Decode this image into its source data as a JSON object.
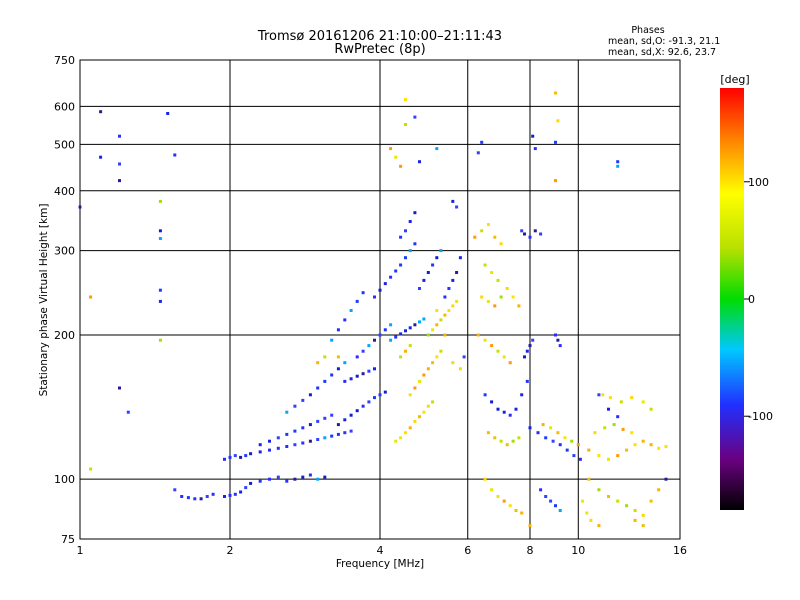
{
  "chart_data": {
    "type": "scatter",
    "title": "Tromsø 20161206 21:10:00–21:11:43",
    "subtitle": "RwPretec (8p)",
    "xlabel": "Frequency [MHz]",
    "ylabel": "Stationary phase Virtual Height [km]",
    "x_scale": "log",
    "y_scale": "log",
    "xlim": [
      1,
      16
    ],
    "ylim": [
      75,
      750
    ],
    "x_ticks": [
      1,
      2,
      4,
      6,
      8,
      10,
      16
    ],
    "y_ticks": [
      75,
      100,
      200,
      300,
      400,
      500,
      600,
      750
    ],
    "grid": true,
    "stats": {
      "heading": "Phases",
      "line_o": "mean, sd,O: -91.3, 21.1",
      "line_x": "mean, sd,X:  92.6, 23.7"
    },
    "colorbar": {
      "label": "[deg]",
      "min": -180,
      "max": 180,
      "ticks": [
        100,
        0,
        -100
      ]
    },
    "series": [
      {
        "color_mode": "o",
        "points": [
          [
            1.0,
            370
          ],
          [
            1.1,
            585
          ],
          [
            1.1,
            470
          ],
          [
            1.2,
            520
          ],
          [
            1.2,
            455
          ],
          [
            1.2,
            420
          ],
          [
            1.5,
            580
          ],
          [
            1.55,
            475
          ],
          [
            1.2,
            155
          ],
          [
            1.25,
            138
          ],
          [
            1.45,
            330
          ],
          [
            1.45,
            318
          ],
          [
            1.45,
            248
          ],
          [
            1.45,
            235
          ],
          [
            1.55,
            95
          ],
          [
            1.6,
            92
          ],
          [
            1.65,
            91.5
          ],
          [
            1.7,
            91
          ],
          [
            1.75,
            91
          ],
          [
            1.8,
            92
          ],
          [
            1.85,
            93
          ],
          [
            1.95,
            92
          ],
          [
            2.0,
            92.5
          ],
          [
            2.05,
            93
          ],
          [
            2.1,
            94
          ],
          [
            2.15,
            96
          ],
          [
            1.95,
            110
          ],
          [
            2.0,
            111
          ],
          [
            2.05,
            112
          ],
          [
            2.1,
            111
          ],
          [
            2.15,
            112
          ],
          [
            2.2,
            98
          ],
          [
            2.3,
            99
          ],
          [
            2.4,
            100
          ],
          [
            2.5,
            101
          ],
          [
            2.6,
            99
          ],
          [
            2.7,
            100
          ],
          [
            2.8,
            101
          ],
          [
            2.9,
            102
          ],
          [
            3.0,
            100
          ],
          [
            3.1,
            101
          ],
          [
            2.2,
            113
          ],
          [
            2.3,
            114
          ],
          [
            2.4,
            115
          ],
          [
            2.5,
            116
          ],
          [
            2.6,
            117
          ],
          [
            2.7,
            118
          ],
          [
            2.8,
            119
          ],
          [
            2.9,
            120
          ],
          [
            3.0,
            121
          ],
          [
            3.1,
            122
          ],
          [
            3.2,
            123
          ],
          [
            3.3,
            124
          ],
          [
            3.4,
            125
          ],
          [
            3.5,
            126
          ],
          [
            2.3,
            118
          ],
          [
            2.4,
            120
          ],
          [
            2.5,
            122
          ],
          [
            2.6,
            124
          ],
          [
            2.7,
            126
          ],
          [
            2.8,
            128
          ],
          [
            2.9,
            130
          ],
          [
            3.0,
            132
          ],
          [
            3.1,
            134
          ],
          [
            3.2,
            136
          ],
          [
            2.6,
            138
          ],
          [
            2.7,
            142
          ],
          [
            2.8,
            146
          ],
          [
            2.9,
            150
          ],
          [
            3.0,
            155
          ],
          [
            3.1,
            160
          ],
          [
            3.2,
            165
          ],
          [
            3.3,
            170
          ],
          [
            3.4,
            175
          ],
          [
            3.2,
            195
          ],
          [
            3.3,
            205
          ],
          [
            3.4,
            215
          ],
          [
            3.5,
            225
          ],
          [
            3.6,
            235
          ],
          [
            3.7,
            245
          ],
          [
            3.3,
            130
          ],
          [
            3.4,
            133
          ],
          [
            3.5,
            136
          ],
          [
            3.6,
            139
          ],
          [
            3.7,
            142
          ],
          [
            3.8,
            145
          ],
          [
            3.9,
            148
          ],
          [
            4.0,
            150
          ],
          [
            4.1,
            152
          ],
          [
            3.4,
            160
          ],
          [
            3.5,
            162
          ],
          [
            3.6,
            164
          ],
          [
            3.7,
            166
          ],
          [
            3.8,
            168
          ],
          [
            3.9,
            170
          ],
          [
            3.6,
            180
          ],
          [
            3.7,
            185
          ],
          [
            3.8,
            190
          ],
          [
            3.9,
            195
          ],
          [
            4.0,
            200
          ],
          [
            4.1,
            205
          ],
          [
            4.2,
            210
          ],
          [
            3.9,
            240
          ],
          [
            4.0,
            248
          ],
          [
            4.1,
            256
          ],
          [
            4.2,
            264
          ],
          [
            4.3,
            272
          ],
          [
            4.4,
            280
          ],
          [
            4.5,
            290
          ],
          [
            4.6,
            300
          ],
          [
            4.7,
            310
          ],
          [
            4.2,
            195
          ],
          [
            4.3,
            198
          ],
          [
            4.4,
            201
          ],
          [
            4.5,
            204
          ],
          [
            4.6,
            207
          ],
          [
            4.7,
            210
          ],
          [
            4.8,
            213
          ],
          [
            4.9,
            216
          ],
          [
            4.4,
            320
          ],
          [
            4.5,
            330
          ],
          [
            4.6,
            345
          ],
          [
            4.7,
            360
          ],
          [
            4.8,
            250
          ],
          [
            4.9,
            260
          ],
          [
            5.0,
            270
          ],
          [
            5.1,
            280
          ],
          [
            5.2,
            290
          ],
          [
            5.3,
            300
          ],
          [
            5.4,
            240
          ],
          [
            5.5,
            250
          ],
          [
            5.6,
            260
          ],
          [
            5.7,
            270
          ],
          [
            5.8,
            290
          ],
          [
            5.9,
            180
          ],
          [
            5.6,
            380
          ],
          [
            5.7,
            370
          ],
          [
            4.7,
            570
          ],
          [
            4.8,
            460
          ],
          [
            5.2,
            490
          ],
          [
            6.3,
            480
          ],
          [
            6.4,
            505
          ],
          [
            8.1,
            520
          ],
          [
            8.2,
            490
          ],
          [
            9.0,
            505
          ],
          [
            6.5,
            150
          ],
          [
            6.7,
            145
          ],
          [
            6.9,
            140
          ],
          [
            7.1,
            138
          ],
          [
            7.3,
            136
          ],
          [
            7.5,
            140
          ],
          [
            7.7,
            150
          ],
          [
            7.9,
            160
          ],
          [
            7.8,
            180
          ],
          [
            7.9,
            185
          ],
          [
            8.0,
            190
          ],
          [
            8.1,
            195
          ],
          [
            7.7,
            330
          ],
          [
            7.8,
            325
          ],
          [
            8.0,
            320
          ],
          [
            8.2,
            330
          ],
          [
            8.4,
            325
          ],
          [
            8.0,
            128
          ],
          [
            8.3,
            125
          ],
          [
            8.6,
            122
          ],
          [
            8.9,
            120
          ],
          [
            9.2,
            118
          ],
          [
            9.5,
            115
          ],
          [
            9.8,
            112
          ],
          [
            10.1,
            110
          ],
          [
            8.4,
            95
          ],
          [
            8.6,
            92
          ],
          [
            8.8,
            90
          ],
          [
            9.0,
            88
          ],
          [
            9.2,
            86
          ],
          [
            9.0,
            200
          ],
          [
            9.1,
            195
          ],
          [
            9.2,
            190
          ],
          [
            12.0,
            460
          ],
          [
            12.0,
            450
          ],
          [
            11.0,
            150
          ],
          [
            11.5,
            140
          ],
          [
            12.0,
            135
          ],
          [
            15.0,
            100
          ]
        ]
      },
      {
        "color_mode": "x",
        "points": [
          [
            1.05,
            240
          ],
          [
            1.05,
            105
          ],
          [
            1.45,
            195
          ],
          [
            1.45,
            380
          ],
          [
            4.5,
            620
          ],
          [
            4.5,
            550
          ],
          [
            9.0,
            640
          ],
          [
            9.0,
            420
          ],
          [
            9.1,
            560
          ],
          [
            3.0,
            175
          ],
          [
            3.1,
            180
          ],
          [
            3.3,
            180
          ],
          [
            4.2,
            490
          ],
          [
            4.3,
            470
          ],
          [
            4.4,
            450
          ],
          [
            4.3,
            120
          ],
          [
            4.4,
            122
          ],
          [
            4.5,
            125
          ],
          [
            4.6,
            128
          ],
          [
            4.7,
            132
          ],
          [
            4.8,
            135
          ],
          [
            4.9,
            138
          ],
          [
            5.0,
            142
          ],
          [
            5.1,
            145
          ],
          [
            4.6,
            150
          ],
          [
            4.7,
            155
          ],
          [
            4.8,
            160
          ],
          [
            4.9,
            165
          ],
          [
            5.0,
            170
          ],
          [
            5.1,
            175
          ],
          [
            5.2,
            180
          ],
          [
            5.3,
            185
          ],
          [
            5.0,
            200
          ],
          [
            5.1,
            205
          ],
          [
            5.2,
            210
          ],
          [
            5.3,
            215
          ],
          [
            5.4,
            220
          ],
          [
            5.5,
            225
          ],
          [
            5.6,
            230
          ],
          [
            5.7,
            235
          ],
          [
            4.4,
            180
          ],
          [
            4.5,
            185
          ],
          [
            4.6,
            190
          ],
          [
            5.2,
            225
          ],
          [
            5.4,
            200
          ],
          [
            5.6,
            175
          ],
          [
            5.8,
            170
          ],
          [
            6.2,
            320
          ],
          [
            6.4,
            330
          ],
          [
            6.6,
            340
          ],
          [
            6.8,
            320
          ],
          [
            7.0,
            310
          ],
          [
            6.5,
            280
          ],
          [
            6.7,
            270
          ],
          [
            6.9,
            260
          ],
          [
            6.4,
            240
          ],
          [
            6.6,
            235
          ],
          [
            6.8,
            230
          ],
          [
            7.0,
            240
          ],
          [
            7.2,
            250
          ],
          [
            7.4,
            240
          ],
          [
            7.6,
            230
          ],
          [
            6.3,
            200
          ],
          [
            6.5,
            195
          ],
          [
            6.7,
            190
          ],
          [
            6.9,
            185
          ],
          [
            7.1,
            180
          ],
          [
            7.3,
            175
          ],
          [
            6.6,
            125
          ],
          [
            6.8,
            122
          ],
          [
            7.0,
            120
          ],
          [
            7.2,
            118
          ],
          [
            7.4,
            120
          ],
          [
            7.6,
            122
          ],
          [
            6.5,
            100
          ],
          [
            6.7,
            95
          ],
          [
            6.9,
            92
          ],
          [
            7.1,
            90
          ],
          [
            7.3,
            88
          ],
          [
            7.5,
            86
          ],
          [
            7.7,
            85
          ],
          [
            8.0,
            80
          ],
          [
            8.5,
            130
          ],
          [
            8.8,
            128
          ],
          [
            9.1,
            125
          ],
          [
            9.4,
            122
          ],
          [
            9.7,
            120
          ],
          [
            10.0,
            118
          ],
          [
            10.5,
            115
          ],
          [
            11.0,
            112
          ],
          [
            11.5,
            110
          ],
          [
            12.0,
            112
          ],
          [
            12.5,
            115
          ],
          [
            13.0,
            118
          ],
          [
            13.5,
            120
          ],
          [
            14.0,
            118
          ],
          [
            14.5,
            116
          ],
          [
            15.0,
            117
          ],
          [
            10.8,
            125
          ],
          [
            11.3,
            128
          ],
          [
            11.8,
            130
          ],
          [
            12.3,
            127
          ],
          [
            12.8,
            125
          ],
          [
            11.2,
            150
          ],
          [
            11.6,
            148
          ],
          [
            12.2,
            145
          ],
          [
            12.8,
            148
          ],
          [
            13.5,
            145
          ],
          [
            14.0,
            140
          ],
          [
            10.5,
            100
          ],
          [
            11.0,
            95
          ],
          [
            11.5,
            92
          ],
          [
            12.0,
            90
          ],
          [
            12.5,
            88
          ],
          [
            13.0,
            86
          ],
          [
            13.5,
            84
          ],
          [
            14.0,
            90
          ],
          [
            14.5,
            95
          ],
          [
            10.2,
            90
          ],
          [
            10.4,
            85
          ],
          [
            10.6,
            82
          ],
          [
            11.0,
            80
          ],
          [
            13.0,
            82
          ],
          [
            13.5,
            80
          ]
        ]
      }
    ]
  }
}
